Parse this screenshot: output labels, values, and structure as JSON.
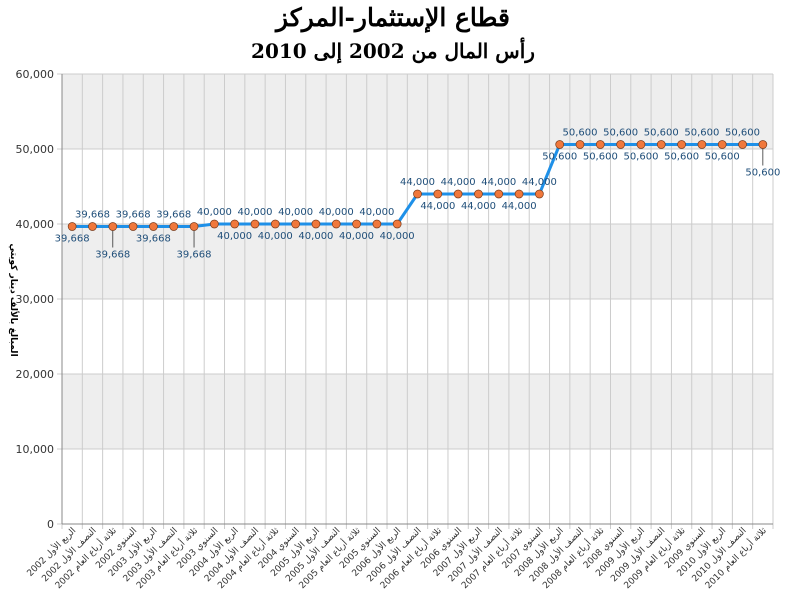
{
  "chart_data": {
    "type": "line",
    "title": "قطاع الإستثمار-المركز",
    "subtitle": "رأس المال من 2002 إلى 2010",
    "xlabel": "",
    "ylabel": "المبالغ بالألف دينار كويتي",
    "ylim": [
      0,
      60000
    ],
    "yticks": [
      "0",
      "10,000",
      "20,000",
      "30,000",
      "40,000",
      "50,000",
      "60,000"
    ],
    "categories": [
      "الربع الأول 2002",
      "النصف الأول 2002",
      "ثلاثة أرباع العام 2002",
      "السنوي 2002",
      "الربع الأول 2003",
      "النصف الأول 2003",
      "ثلاثة أرباع العام 2003",
      "السنوي 2003",
      "الربع الأول 2004",
      "النصف الأول 2004",
      "ثلاثة أرباع العام 2004",
      "السنوي 2004",
      "الربع الأول 2005",
      "النصف الأول 2005",
      "ثلاثة أرباع العام 2005",
      "السنوي 2005",
      "الربع الأول 2006",
      "النصف الأول 2006",
      "ثلاثة أرباع العام 2006",
      "السنوي 2006",
      "الربع الأول 2007",
      "النصف الأول 2007",
      "ثلاثة أرباع العام 2007",
      "السنوي 2007",
      "الربع الأول 2008",
      "النصف الأول 2008",
      "ثلاثة أرباع العام 2008",
      "السنوي 2008",
      "الربع الأول 2009",
      "النصف الأول 2009",
      "ثلاثة أرباع العام 2009",
      "السنوي 2009",
      "الربع الأول 2010",
      "النصف الأول 2010",
      "ثلاثة أرباع العام 2010"
    ],
    "series": [
      {
        "values": [
          39668,
          39668,
          39668,
          39668,
          39668,
          39668,
          39668,
          40000,
          40000,
          40000,
          40000,
          40000,
          40000,
          40000,
          40000,
          40000,
          40000,
          44000,
          44000,
          44000,
          44000,
          44000,
          44000,
          44000,
          50600,
          50600,
          50600,
          50600,
          50600,
          50600,
          50600,
          50600,
          50600,
          50600,
          50600
        ],
        "labels": [
          "39,668",
          "39,668",
          "39,668",
          "39,668",
          "39,668",
          "39,668",
          "39,668",
          "40,000",
          "40,000",
          "40,000",
          "40,000",
          "40,000",
          "40,000",
          "40,000",
          "40,000",
          "40,000",
          "40,000",
          "44,000",
          "44,000",
          "44,000",
          "44,000",
          "44,000",
          "44,000",
          "44,000",
          "50,600",
          "50,600",
          "50,600",
          "50,600",
          "50,600",
          "50,600",
          "50,600",
          "50,600",
          "50,600",
          "50,600",
          "50,600"
        ],
        "color": "#1e90e8",
        "marker_color": "#f0783c"
      }
    ],
    "grid": true,
    "band_colors": [
      "#ffffff",
      "#eeeeee"
    ],
    "legend": "none"
  }
}
